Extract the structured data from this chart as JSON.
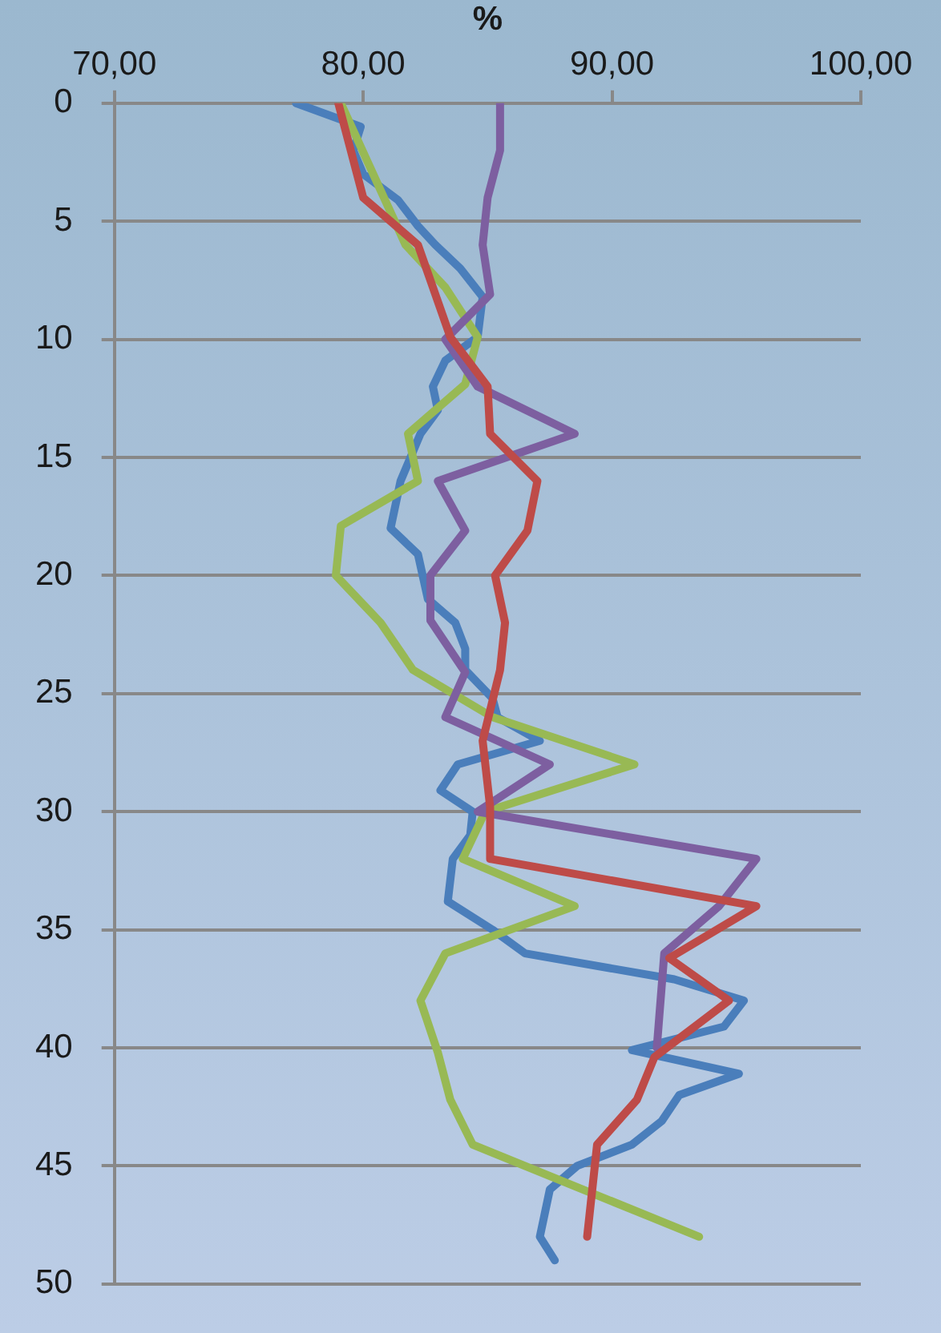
{
  "chart_data": {
    "type": "line",
    "xlabel": "%",
    "xlim": [
      70,
      100
    ],
    "xticks": [
      {
        "value": 70,
        "label": "70,00"
      },
      {
        "value": 80,
        "label": "80,00"
      },
      {
        "value": 90,
        "label": "90,00"
      },
      {
        "value": 100,
        "label": "100,00"
      }
    ],
    "ylim": [
      50,
      0
    ],
    "yticks": [
      0,
      5,
      10,
      15,
      20,
      25,
      30,
      35,
      40,
      45,
      50
    ],
    "grid": "y",
    "legend": false,
    "marker": "none",
    "line_style": "solid",
    "series": [
      {
        "color": "#be4b48",
        "x": [
          79.0,
          80.0,
          82.2,
          83.5,
          85.0,
          85.1,
          87.0,
          86.6,
          85.3,
          85.7,
          85.5,
          84.8,
          85.1,
          85.1,
          95.8,
          92.3,
          94.7,
          91.7,
          91.0,
          89.4,
          89.0
        ],
        "values": [
          0,
          4,
          6,
          9.9,
          12,
          14,
          16,
          18.1,
          20,
          22,
          24,
          27,
          29.8,
          32,
          34,
          36.2,
          38,
          40.4,
          42.2,
          44.1,
          48
        ]
      },
      {
        "color": "#7d5fa0",
        "x": [
          85.5,
          85.5,
          85.0,
          84.8,
          85.1,
          83.3,
          84.6,
          88.5,
          83.0,
          84.1,
          82.7,
          82.7,
          84.1,
          83.3,
          87.5,
          84.6,
          95.8,
          94.3,
          92.1,
          91.8
        ],
        "values": [
          0,
          2,
          4,
          6,
          8.1,
          10,
          12,
          14,
          16,
          18.1,
          20,
          21.9,
          24.1,
          26,
          28,
          30,
          32,
          34,
          36,
          40
        ]
      },
      {
        "color": "#98b954",
        "x": [
          79.1,
          81.7,
          83.3,
          84.6,
          84.1,
          81.8,
          82.2,
          79.1,
          78.9,
          80.7,
          82.0,
          85.2,
          90.9,
          84.9,
          84.0,
          88.5,
          83.3,
          82.3,
          83.0,
          83.5,
          84.4,
          93.5
        ],
        "values": [
          0,
          6,
          7.8,
          9.9,
          11.9,
          14,
          16,
          17.9,
          20,
          22,
          24,
          26,
          28,
          30,
          32,
          34,
          36,
          38,
          40.2,
          42.2,
          44.1,
          48
        ]
      },
      {
        "color": "#4a7ebb",
        "x": [
          77.3,
          79.9,
          79.6,
          80.0,
          81.4,
          82.2,
          82.9,
          83.9,
          84.8,
          84.6,
          83.3,
          82.8,
          83.0,
          82.3,
          81.5,
          81.1,
          82.2,
          82.6,
          83.7,
          84.1,
          84.1,
          85.2,
          85.4,
          87.1,
          83.8,
          83.1,
          84.4,
          84.3,
          83.6,
          83.4,
          85.2,
          86.5,
          92.5,
          95.3,
          94.5,
          90.8,
          95.1,
          92.7,
          92.0,
          90.8,
          88.6,
          87.5,
          87.1,
          87.7
        ],
        "values": [
          0,
          1,
          2,
          3,
          4.1,
          5.2,
          6,
          7,
          8.2,
          9.9,
          10.9,
          12,
          13,
          14,
          16,
          18,
          19.1,
          21,
          22,
          23.1,
          24,
          25.2,
          26,
          27,
          28,
          29.1,
          30,
          31,
          32,
          33.8,
          35,
          36,
          37.1,
          38,
          39.1,
          40.1,
          41.1,
          42,
          43.1,
          44.1,
          45,
          46,
          48,
          49
        ]
      }
    ]
  }
}
